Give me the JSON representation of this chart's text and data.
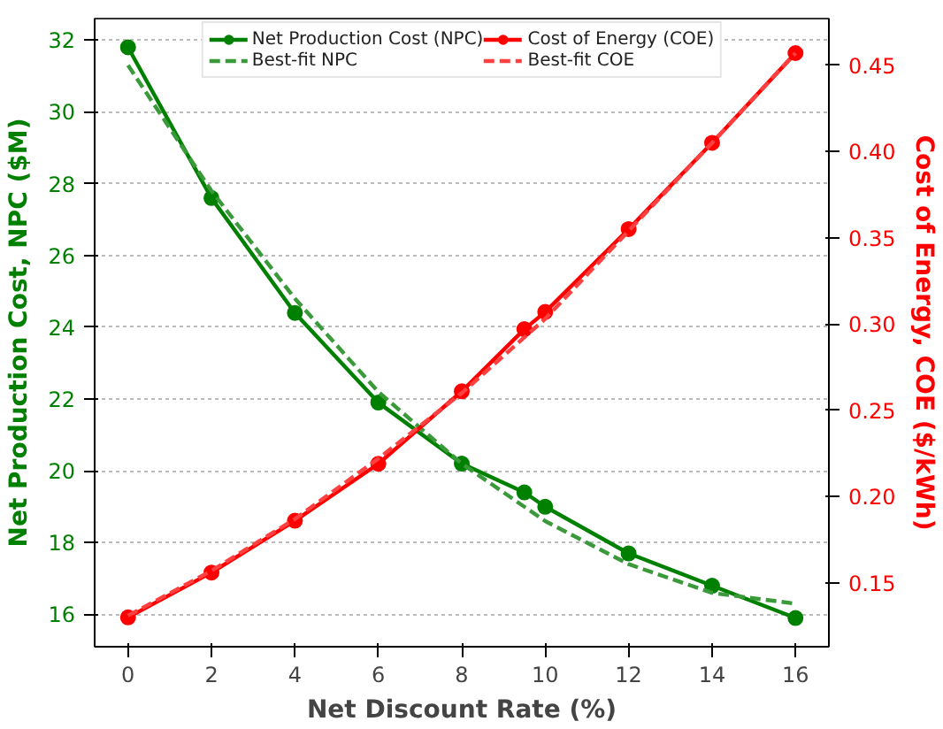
{
  "chart_data": {
    "type": "line",
    "xlabel": "Net Discount Rate (%)",
    "ylabel": "Net Production Cost, NPC ($M)",
    "y2label": "Cost of Energy, COE ($/kWh)",
    "xlim": [
      -0.8,
      16.8
    ],
    "xticks": [
      0,
      2,
      4,
      6,
      8,
      10,
      12,
      14,
      16
    ],
    "ylim": [
      15.1,
      32.6
    ],
    "yticks": [
      16,
      18,
      20,
      22,
      24,
      26,
      28,
      30,
      32
    ],
    "y2lim": [
      0.113,
      0.477
    ],
    "y2ticks": [
      {
        "value": 0.15,
        "label": "0.15"
      },
      {
        "value": 0.2,
        "label": "0.20"
      },
      {
        "value": 0.25,
        "label": "0.25"
      },
      {
        "value": 0.3,
        "label": "0.30"
      },
      {
        "value": 0.35,
        "label": "0.35"
      },
      {
        "value": 0.4,
        "label": "0.40"
      },
      {
        "value": 0.45,
        "label": "0.45"
      }
    ],
    "grid": "y",
    "legend": "top",
    "series": [
      {
        "name": "Net Production Cost (NPC)",
        "color": "#008000",
        "x": [
          0,
          2,
          4,
          6,
          8,
          9.5,
          10,
          12,
          14,
          16
        ],
        "values": [
          31.8,
          27.6,
          24.4,
          21.9,
          20.2,
          19.4,
          19.0,
          17.7,
          16.8,
          15.9
        ],
        "line_style": "solid",
        "marker": "circle"
      },
      {
        "name": "Best-fit NPC",
        "color": "#3a9a3a",
        "x": [
          0,
          2,
          4,
          6,
          8,
          10,
          12,
          14,
          16
        ],
        "values": [
          31.3,
          27.8,
          24.8,
          22.2,
          20.2,
          18.6,
          17.4,
          16.6,
          16.3
        ],
        "line_style": "dashed",
        "marker": "none"
      },
      {
        "name": "Cost of Energy (COE)",
        "color": "#ff0000",
        "axis": "y2",
        "x": [
          0,
          2,
          4,
          6,
          8,
          9.5,
          10,
          12,
          14,
          16
        ],
        "values": [
          0.13,
          0.156,
          0.186,
          0.219,
          0.261,
          0.297,
          0.307,
          0.355,
          0.405,
          0.457
        ],
        "line_style": "solid",
        "marker": "circle"
      },
      {
        "name": "Best-fit COE",
        "color": "#ff4040",
        "axis": "y2",
        "x": [
          0,
          2,
          4,
          6,
          8,
          10,
          12,
          14,
          16
        ],
        "values": [
          0.131,
          0.157,
          0.187,
          0.222,
          0.26,
          0.303,
          0.354,
          0.405,
          0.457
        ],
        "line_style": "dashed",
        "marker": "none"
      }
    ]
  }
}
